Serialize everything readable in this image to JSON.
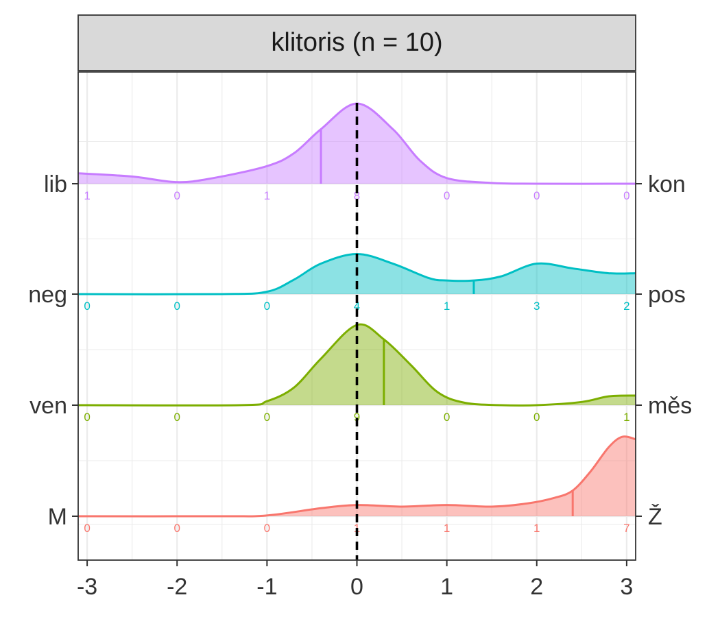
{
  "chart_data": {
    "type": "area",
    "title": "klitoris (n = 10)",
    "xlabel": "",
    "ylabel": "",
    "xlim": [
      -3.1,
      3.1
    ],
    "x_ticks": [
      -3,
      -2,
      -1,
      0,
      1,
      2,
      3
    ],
    "x_tick_labels": [
      "-3",
      "-2",
      "-1",
      "0",
      "1",
      "2",
      "3"
    ],
    "reference_line_x": 0,
    "grid": true,
    "legend": "none",
    "series": [
      {
        "left_label": "lib",
        "right_label": "kon",
        "color": "#C77CFF",
        "mean": -0.4,
        "counts": [
          1,
          0,
          1,
          8,
          0,
          0,
          0
        ],
        "density": [
          [
            -3.1,
            0.13
          ],
          [
            -2.5,
            0.09
          ],
          [
            -2.0,
            0.02
          ],
          [
            -1.6,
            0.07
          ],
          [
            -1.0,
            0.22
          ],
          [
            -0.7,
            0.38
          ],
          [
            -0.4,
            0.68
          ],
          [
            0.0,
            1.0
          ],
          [
            0.4,
            0.68
          ],
          [
            0.7,
            0.29
          ],
          [
            1.0,
            0.07
          ],
          [
            1.5,
            0.01
          ],
          [
            2.0,
            0.0
          ],
          [
            3.1,
            0.0
          ]
        ]
      },
      {
        "left_label": "neg",
        "right_label": "pos",
        "color": "#00BFC4",
        "mean": 1.3,
        "counts": [
          0,
          0,
          0,
          4,
          1,
          3,
          2
        ],
        "density": [
          [
            -3.1,
            0.0
          ],
          [
            -1.5,
            0.0
          ],
          [
            -1.0,
            0.03
          ],
          [
            -0.7,
            0.18
          ],
          [
            -0.4,
            0.38
          ],
          [
            0.0,
            0.5
          ],
          [
            0.4,
            0.38
          ],
          [
            0.8,
            0.2
          ],
          [
            1.0,
            0.17
          ],
          [
            1.3,
            0.17
          ],
          [
            1.6,
            0.22
          ],
          [
            2.0,
            0.38
          ],
          [
            2.4,
            0.32
          ],
          [
            2.8,
            0.26
          ],
          [
            3.1,
            0.26
          ]
        ]
      },
      {
        "left_label": "ven",
        "right_label": "měs",
        "color": "#7CAE00",
        "mean": 0.3,
        "counts": [
          0,
          0,
          0,
          9,
          0,
          0,
          1
        ],
        "density": [
          [
            -3.1,
            0.0
          ],
          [
            -1.3,
            0.0
          ],
          [
            -1.0,
            0.05
          ],
          [
            -0.7,
            0.22
          ],
          [
            -0.4,
            0.58
          ],
          [
            0.0,
            1.0
          ],
          [
            0.3,
            0.82
          ],
          [
            0.6,
            0.5
          ],
          [
            0.9,
            0.16
          ],
          [
            1.2,
            0.03
          ],
          [
            1.6,
            0.0
          ],
          [
            2.0,
            0.0
          ],
          [
            2.5,
            0.04
          ],
          [
            2.8,
            0.11
          ],
          [
            3.1,
            0.12
          ]
        ]
      },
      {
        "left_label": "M",
        "right_label": "Ž",
        "color": "#F8766D",
        "mean": 2.4,
        "counts": [
          0,
          0,
          0,
          1,
          1,
          1,
          7
        ],
        "density": [
          [
            -3.1,
            0.0
          ],
          [
            -1.5,
            0.0
          ],
          [
            -1.0,
            0.01
          ],
          [
            -0.4,
            0.1
          ],
          [
            0.0,
            0.14
          ],
          [
            0.5,
            0.12
          ],
          [
            1.0,
            0.14
          ],
          [
            1.5,
            0.12
          ],
          [
            1.9,
            0.16
          ],
          [
            2.2,
            0.23
          ],
          [
            2.4,
            0.32
          ],
          [
            2.6,
            0.56
          ],
          [
            2.8,
            0.86
          ],
          [
            2.95,
            0.99
          ],
          [
            3.1,
            0.96
          ]
        ]
      }
    ]
  }
}
